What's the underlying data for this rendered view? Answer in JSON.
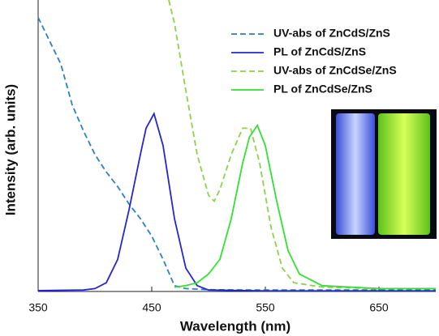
{
  "chart_data": {
    "type": "line",
    "x_label": "Wavelength (nm)",
    "y_label": "Intensity (arb. units)",
    "xlim": [
      350,
      700
    ],
    "ylim": [
      0,
      1
    ],
    "xticks": [
      350,
      450,
      550,
      650
    ],
    "legend": "upper right",
    "series": [
      {
        "name": "UV-abs of ZnCdS/ZnS",
        "color": "#2f7fc4",
        "dash": true,
        "x": [
          350,
          360,
          370,
          380,
          390,
          400,
          410,
          420,
          430,
          440,
          450,
          460,
          470,
          480,
          500,
          550,
          600,
          650,
          700
        ],
        "values": [
          0.94,
          0.86,
          0.78,
          0.64,
          0.55,
          0.47,
          0.41,
          0.36,
          0.3,
          0.25,
          0.19,
          0.11,
          0.02,
          0.01,
          0.006,
          0.005,
          0.005,
          0.005,
          0.005
        ]
      },
      {
        "name": "PL of ZnCdS/ZnS",
        "color": "#2626d0",
        "dash": false,
        "x": [
          350,
          390,
          400,
          410,
          420,
          430,
          440,
          445,
          452,
          460,
          470,
          480,
          490,
          500,
          550,
          600,
          650,
          700
        ],
        "values": [
          0.003,
          0.005,
          0.01,
          0.03,
          0.11,
          0.28,
          0.47,
          0.56,
          0.61,
          0.5,
          0.25,
          0.08,
          0.02,
          0.005,
          0.002,
          0.002,
          0.002,
          0.002
        ]
      },
      {
        "name": "UV-abs of ZnCdSe/ZnS",
        "color": "#8fd14f",
        "dash": true,
        "x": [
          465,
          470,
          480,
          490,
          500,
          505,
          510,
          520,
          530,
          537,
          545,
          555,
          565,
          575,
          600,
          650,
          700
        ],
        "values": [
          1.0,
          0.92,
          0.69,
          0.47,
          0.33,
          0.31,
          0.35,
          0.47,
          0.56,
          0.56,
          0.44,
          0.22,
          0.08,
          0.03,
          0.015,
          0.01,
          0.01
        ]
      },
      {
        "name": "PL of ZnCdSe/ZnS",
        "color": "#33e033",
        "dash": false,
        "x": [
          470,
          480,
          490,
          500,
          510,
          520,
          530,
          536,
          543,
          550,
          560,
          570,
          580,
          600,
          650,
          700
        ],
        "values": [
          0.015,
          0.02,
          0.03,
          0.06,
          0.11,
          0.25,
          0.44,
          0.53,
          0.57,
          0.5,
          0.31,
          0.14,
          0.06,
          0.02,
          0.01,
          0.01
        ]
      }
    ]
  }
}
